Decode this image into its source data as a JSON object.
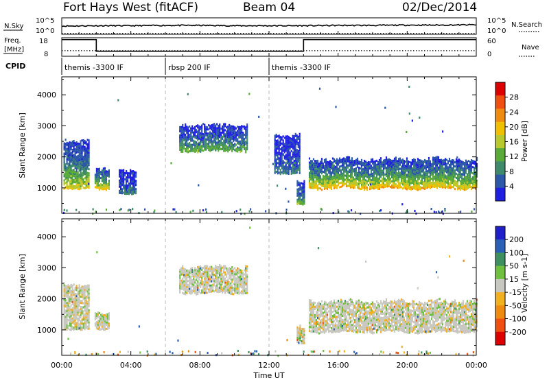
{
  "header": {
    "title": "Fort Hays West (fitACF)",
    "beam": "Beam 04",
    "date": "02/Dec/2014"
  },
  "chart_data": [
    {
      "type": "line",
      "panel": "noise",
      "left_labels": [
        "N.Sky",
        "10^5",
        "10^0"
      ],
      "right_labels": [
        "N.Search",
        "10^5",
        "10^0"
      ],
      "ylim_log10": [
        0,
        5
      ],
      "series": [
        {
          "name": "N.Sky",
          "style": "solid",
          "x_hours": [
            0,
            2,
            4,
            6,
            8,
            10,
            12,
            14,
            16,
            18,
            20,
            22,
            24
          ],
          "log10_values": [
            2.5,
            2.6,
            2.6,
            2.7,
            2.7,
            2.6,
            2.6,
            2.6,
            2.7,
            2.7,
            2.8,
            2.8,
            2.9
          ]
        },
        {
          "name": "N.Search",
          "style": "dotted",
          "x_hours": [
            0,
            24
          ],
          "log10_values": [
            0.3,
            0.3
          ]
        }
      ]
    },
    {
      "type": "line",
      "panel": "frequency",
      "left_labels": [
        "Freq.",
        "[MHz]",
        "18",
        "8"
      ],
      "right_labels": [
        "60",
        "0",
        "Nave"
      ],
      "ylim": [
        8,
        18
      ],
      "series": [
        {
          "name": "Freq.",
          "style": "solid",
          "x_hours": [
            0,
            2.0,
            2.0,
            14.0,
            14.0,
            24
          ],
          "values": [
            17.0,
            17.0,
            10.7,
            10.7,
            17.0,
            17.0
          ]
        },
        {
          "name": "Nave",
          "style": "dotted",
          "x_hours": [
            0,
            24
          ],
          "values": [
            11.0,
            11.0
          ]
        }
      ]
    },
    {
      "type": "table",
      "panel": "cpid",
      "label": "CPID",
      "segments": [
        {
          "start_hour": 0,
          "text": "themis -3300 IF"
        },
        {
          "start_hour": 6,
          "text": "rbsp 200 IF"
        },
        {
          "start_hour": 12,
          "text": "themis -3300 IF"
        }
      ]
    },
    {
      "type": "heatmap",
      "panel": "power",
      "ylabel": "Slant Range [km]",
      "xlim_hours": [
        0,
        24
      ],
      "ylim": [
        180,
        4580
      ],
      "yticks": [
        1000,
        2000,
        3000,
        4000
      ],
      "colorbar": {
        "label": "Power [dB]",
        "ticks": [
          4,
          8,
          12,
          16,
          20,
          24,
          28
        ],
        "range": [
          0,
          32
        ],
        "colors": [
          "#2020e0",
          "#2d58a8",
          "#3f8a6a",
          "#5aaa3a",
          "#b8c82e",
          "#f0c000",
          "#f08a10",
          "#ee5010",
          "#dd0000"
        ]
      },
      "regions": [
        {
          "t0": 0.1,
          "t1": 1.6,
          "r0": 1000,
          "r1": 2600,
          "level": 14
        },
        {
          "t0": 1.9,
          "t1": 2.7,
          "r0": 1000,
          "r1": 1700,
          "level": 16
        },
        {
          "t0": 3.3,
          "t1": 4.3,
          "r0": 850,
          "r1": 1650,
          "level": 6
        },
        {
          "t0": 6.8,
          "t1": 10.7,
          "r0": 2200,
          "r1": 3100,
          "level": 10
        },
        {
          "t0": 12.3,
          "t1": 13.8,
          "r0": 1500,
          "r1": 2800,
          "level": 6
        },
        {
          "t0": 13.6,
          "t1": 14.0,
          "r0": 500,
          "r1": 1300,
          "level": 10
        },
        {
          "t0": 14.3,
          "t1": 24.0,
          "r0": 1000,
          "r1": 2000,
          "level": 16
        }
      ]
    },
    {
      "type": "heatmap",
      "panel": "velocity",
      "ylabel": "Slant Range [km]",
      "xlabel": "Time UT",
      "xticks": [
        "00:00",
        "04:00",
        "08:00",
        "12:00",
        "16:00",
        "20:00",
        "00:00"
      ],
      "xlim_hours": [
        0,
        24
      ],
      "ylim": [
        180,
        4580
      ],
      "yticks": [
        1000,
        2000,
        3000,
        4000
      ],
      "colorbar": {
        "label": "Velocity [m s-1]",
        "ticks": [
          200,
          100,
          50,
          15,
          -15,
          -50,
          -100,
          -200
        ],
        "colors": [
          "#2020c8",
          "#2a60b8",
          "#3f9060",
          "#70c040",
          "#c8c8c0",
          "#f0b020",
          "#f08a10",
          "#ee5010",
          "#dd0000"
        ]
      },
      "regions": [
        {
          "t0": 0.1,
          "t1": 1.6,
          "r0": 1050,
          "r1": 2550,
          "velocity": 0
        },
        {
          "t0": 1.9,
          "t1": 2.7,
          "r0": 1050,
          "r1": 1650,
          "velocity": 0
        },
        {
          "t0": 6.8,
          "t1": 10.7,
          "r0": 2200,
          "r1": 3100,
          "velocity": 0
        },
        {
          "t0": 13.6,
          "t1": 14.0,
          "r0": 600,
          "r1": 1200,
          "velocity": 0
        },
        {
          "t0": 14.3,
          "t1": 24.0,
          "r0": 950,
          "r1": 2000,
          "velocity": 0
        }
      ]
    }
  ]
}
